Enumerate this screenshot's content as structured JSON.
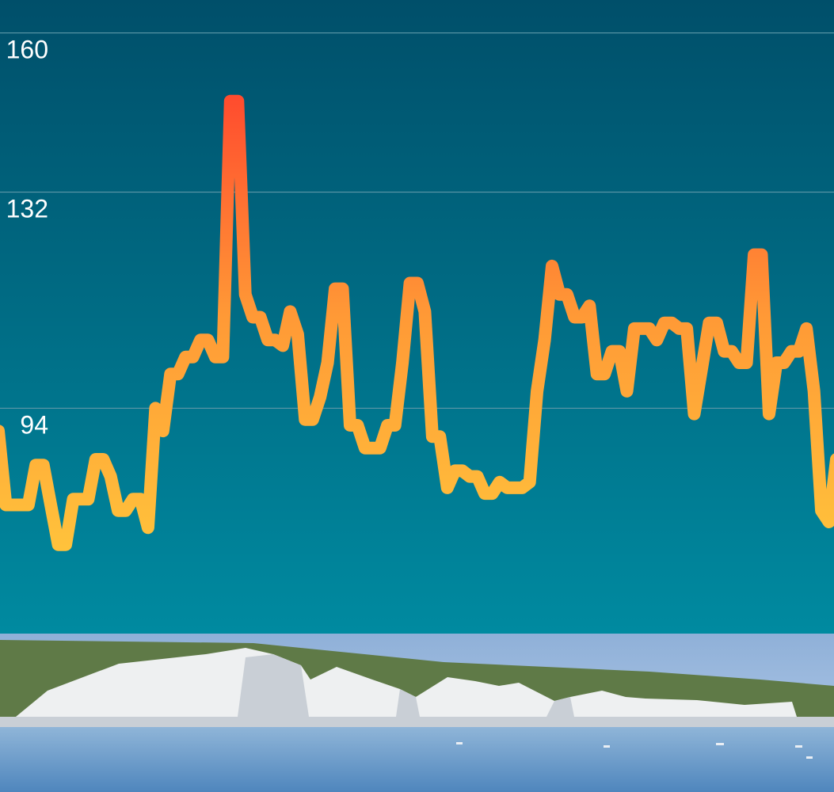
{
  "colors": {
    "bg_top": "#004f6a",
    "bg_bottom": "#008aa0",
    "gridline": "#5d98a8",
    "line_low": "#ffc83c",
    "line_mid": "#ff9936",
    "line_high": "#ff4b2e"
  },
  "chart_data": {
    "type": "line",
    "title": "",
    "xlabel": "",
    "ylabel": "",
    "grid": true,
    "ylim": [
      63,
      163
    ],
    "yticks": [
      {
        "value": 160,
        "label": "160"
      },
      {
        "value": 132,
        "label": "132"
      },
      {
        "value": 94,
        "label": "94"
      }
    ],
    "series": [
      {
        "values": [
          90,
          77,
          77,
          77,
          77,
          84,
          84,
          77,
          70,
          70,
          78,
          78,
          78,
          85,
          85,
          82,
          76,
          76,
          78,
          78,
          73,
          94,
          90,
          100,
          100,
          103,
          103,
          106,
          106,
          103,
          103,
          148,
          148,
          114,
          110,
          110,
          106,
          106,
          105,
          111,
          107,
          92,
          92,
          96,
          102,
          115,
          115,
          91,
          91,
          87,
          87,
          87,
          91,
          91,
          102,
          116,
          116,
          111,
          89,
          89,
          80,
          83,
          83,
          82,
          82,
          79,
          79,
          81,
          80,
          80,
          80,
          81,
          97,
          106,
          119,
          114,
          114,
          110,
          110,
          112,
          100,
          100,
          104,
          104,
          97,
          108,
          108,
          108,
          106,
          109,
          109,
          108,
          108,
          93,
          101,
          109,
          109,
          104,
          104,
          102,
          102,
          121,
          121,
          93,
          102,
          102,
          104,
          104,
          108,
          97,
          76,
          74,
          85
        ]
      }
    ]
  },
  "photo": {
    "sky_top": "#8fb0d8",
    "sky_bottom": "#b9d0ec",
    "grass": "#5f7a47",
    "cliff": "#eef0f1",
    "cliff_shadow": "#c9cfd6",
    "sea_top": "#8fb5d8",
    "sea_bottom": "#4f86bd"
  }
}
